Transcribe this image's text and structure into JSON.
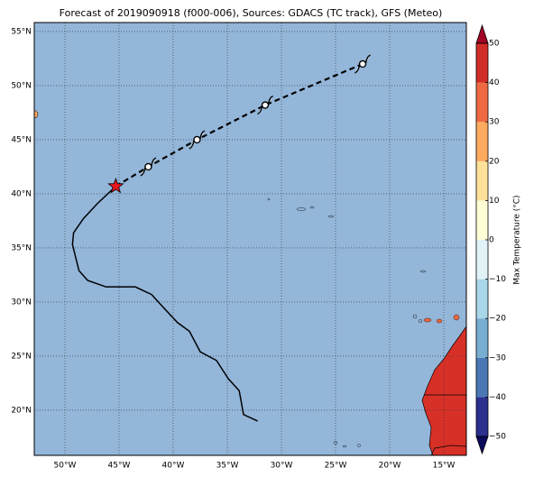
{
  "chart_data": {
    "type": "map",
    "title": "Forecast of 2019090918 (f000-006), Sources: GDACS (TC track), GFS (Meteo)",
    "xlim": [
      -52.83,
      -12.92
    ],
    "ylim": [
      15.83,
      55.83
    ],
    "xticks": [
      {
        "value": -50,
        "label": "50°W"
      },
      {
        "value": -45,
        "label": "45°W"
      },
      {
        "value": -40,
        "label": "40°W"
      },
      {
        "value": -35,
        "label": "35°W"
      },
      {
        "value": -30,
        "label": "30°W"
      },
      {
        "value": -25,
        "label": "25°W"
      },
      {
        "value": -20,
        "label": "20°W"
      },
      {
        "value": -15,
        "label": "15°W"
      }
    ],
    "yticks": [
      {
        "value": 20,
        "label": "20°N"
      },
      {
        "value": 25,
        "label": "25°N"
      },
      {
        "value": 30,
        "label": "30°N"
      },
      {
        "value": 35,
        "label": "35°N"
      },
      {
        "value": 40,
        "label": "40°N"
      },
      {
        "value": 45,
        "label": "45°N"
      },
      {
        "value": 50,
        "label": "50°N"
      },
      {
        "value": 55,
        "label": "55°N"
      }
    ],
    "grid": true,
    "past_track": {
      "color": "#000000",
      "lon": [
        -32.2,
        -33.5,
        -33.9,
        -34.9,
        -36.0,
        -37.5,
        -38.5,
        -39.6,
        -41.0,
        -42.0,
        -43.5,
        -46.2,
        -47.9,
        -48.7,
        -49.3,
        -49.2,
        -48.3,
        -47.0,
        -45.3
      ],
      "lat": [
        19.0,
        19.6,
        21.8,
        22.9,
        24.6,
        25.4,
        27.3,
        28.1,
        29.6,
        30.7,
        31.4,
        31.4,
        32.0,
        32.9,
        35.3,
        36.4,
        37.7,
        39.1,
        40.7
      ]
    },
    "current_position": {
      "lon": -45.3,
      "lat": 40.7,
      "color": "#e8161b"
    },
    "forecast_track": {
      "color": "#000000",
      "lon": [
        -45.3,
        -42.3,
        -37.8,
        -31.5,
        -22.5
      ],
      "lat": [
        40.7,
        42.5,
        45.0,
        48.2,
        52.0
      ]
    },
    "colorbar": {
      "label": "Max Temperature (°C)",
      "levels": [
        -50,
        -40,
        -30,
        -20,
        -10,
        0,
        10,
        20,
        30,
        40,
        50
      ],
      "colors": [
        "#2b2f8e",
        "#4a78b5",
        "#77aed2",
        "#a9d6e8",
        "#e2f3f7",
        "#fefed6",
        "#fde09a",
        "#fcaa5f",
        "#ef6a42",
        "#d02d27"
      ],
      "under_color": "#0c0a5c",
      "over_color": "#a10526",
      "ticks": [
        {
          "value": -50,
          "label": "−50"
        },
        {
          "value": -40,
          "label": "−40"
        },
        {
          "value": -30,
          "label": "−30"
        },
        {
          "value": -20,
          "label": "−20"
        },
        {
          "value": -10,
          "label": "−10"
        },
        0,
        10,
        20,
        30,
        40,
        50
      ]
    }
  }
}
